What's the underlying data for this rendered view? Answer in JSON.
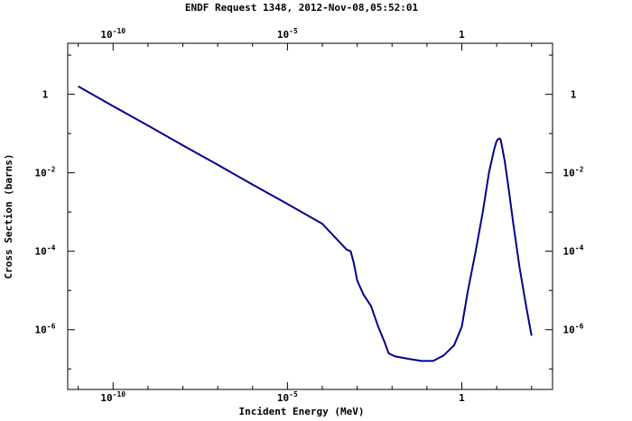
{
  "chart_data": {
    "type": "line",
    "title": "ENDF Request 1348, 2012-Nov-08,05:52:01",
    "xlabel": "Incident Energy (MeV)",
    "ylabel": "Cross Section (barns)",
    "x_scale": "log",
    "y_scale": "log",
    "xlim": [
      5e-12,
      400
    ],
    "ylim": [
      3e-08,
      20
    ],
    "x_ticks": [
      {
        "value": 1e-10,
        "base": "10",
        "exp": "-10"
      },
      {
        "value": 1e-05,
        "base": "10",
        "exp": "-5"
      },
      {
        "value": 1,
        "base": "1",
        "exp": ""
      }
    ],
    "y_ticks": [
      {
        "value": 1,
        "base": "1",
        "exp": ""
      },
      {
        "value": 0.01,
        "base": "10",
        "exp": "-2"
      },
      {
        "value": 0.0001,
        "base": "10",
        "exp": "-4"
      },
      {
        "value": 1e-06,
        "base": "10",
        "exp": "-6"
      }
    ],
    "grid": false,
    "line_color": "#00008b",
    "series": [
      {
        "x": [
          1e-11,
          1e-10,
          1e-09,
          1e-08,
          1e-07,
          1e-06,
          1e-05,
          0.0001,
          0.0005,
          0.00065,
          0.0008,
          0.001,
          0.0015,
          0.0025,
          0.004,
          0.006,
          0.008,
          0.012,
          0.03,
          0.07,
          0.15,
          0.3,
          0.6,
          1.0,
          1.5,
          2.5,
          4.0,
          6.0,
          8.5,
          10,
          11,
          12,
          13,
          14,
          17,
          22,
          30,
          45,
          70,
          100
        ],
        "y": [
          1.6,
          0.5,
          0.16,
          0.05,
          0.016,
          0.005,
          0.0016,
          0.0005,
          0.00011,
          0.0001,
          5e-05,
          1.8e-05,
          8e-06,
          4e-06,
          1.2e-06,
          5e-07,
          2.5e-07,
          2.1e-07,
          1.8e-07,
          1.6e-07,
          1.6e-07,
          2.2e-07,
          4e-07,
          1.2e-06,
          1e-05,
          0.0001,
          0.001,
          0.01,
          0.04,
          0.065,
          0.072,
          0.075,
          0.07,
          0.05,
          0.02,
          0.004,
          0.0005,
          4e-05,
          4e-06,
          7e-07
        ]
      }
    ]
  }
}
